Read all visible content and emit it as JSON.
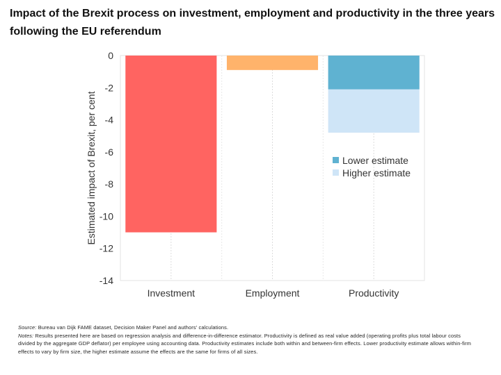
{
  "chart_data": {
    "type": "bar",
    "title": "Impact of the Brexit process on investment, employment and productivity in the three years following the EU referendum",
    "xlabel": "",
    "ylabel": "Estimated impact of Brexit, per cent",
    "ylim": [
      -14,
      0
    ],
    "yticks": [
      0,
      -2,
      -4,
      -6,
      -8,
      -10,
      -12,
      -14
    ],
    "categories": [
      "Investment",
      "Employment",
      "Productivity"
    ],
    "series": [
      {
        "name": "Investment",
        "values": [
          -11,
          null,
          null
        ],
        "color": "#ff6461"
      },
      {
        "name": "Employment",
        "values": [
          null,
          -0.9,
          null
        ],
        "color": "#ffb36b"
      },
      {
        "name": "Higher estimate",
        "values": [
          null,
          null,
          -4.8
        ],
        "color": "#cfe5f7"
      },
      {
        "name": "Lower estimate",
        "values": [
          null,
          null,
          -2.1
        ],
        "color": "#5fb2d1"
      }
    ],
    "legend": [
      {
        "label": "Lower estimate",
        "color": "#5fb2d1"
      },
      {
        "label": "Higher estimate",
        "color": "#cfe5f7"
      }
    ],
    "legend_position": "right",
    "grid": true
  },
  "notes": {
    "source_label": "Source:",
    "source_text": " Bureau van Dijk FAME dataset, Decision Maker Panel and authors' calculations.",
    "notes_label": "Notes:",
    "notes_text": " Results presented here are based on regression analysis and difference-in-difference estimator. Productivity is defined as real value added (operating profits plus total labour costs divided by the aggregate GDP deflator) per employee using accounting data. Productivity estimates include both within and between-firm effects. Lower productivity estimate allows within-firm effects to vary by firm size, the higher estimate assume the effects are the same for firms of all sizes."
  }
}
